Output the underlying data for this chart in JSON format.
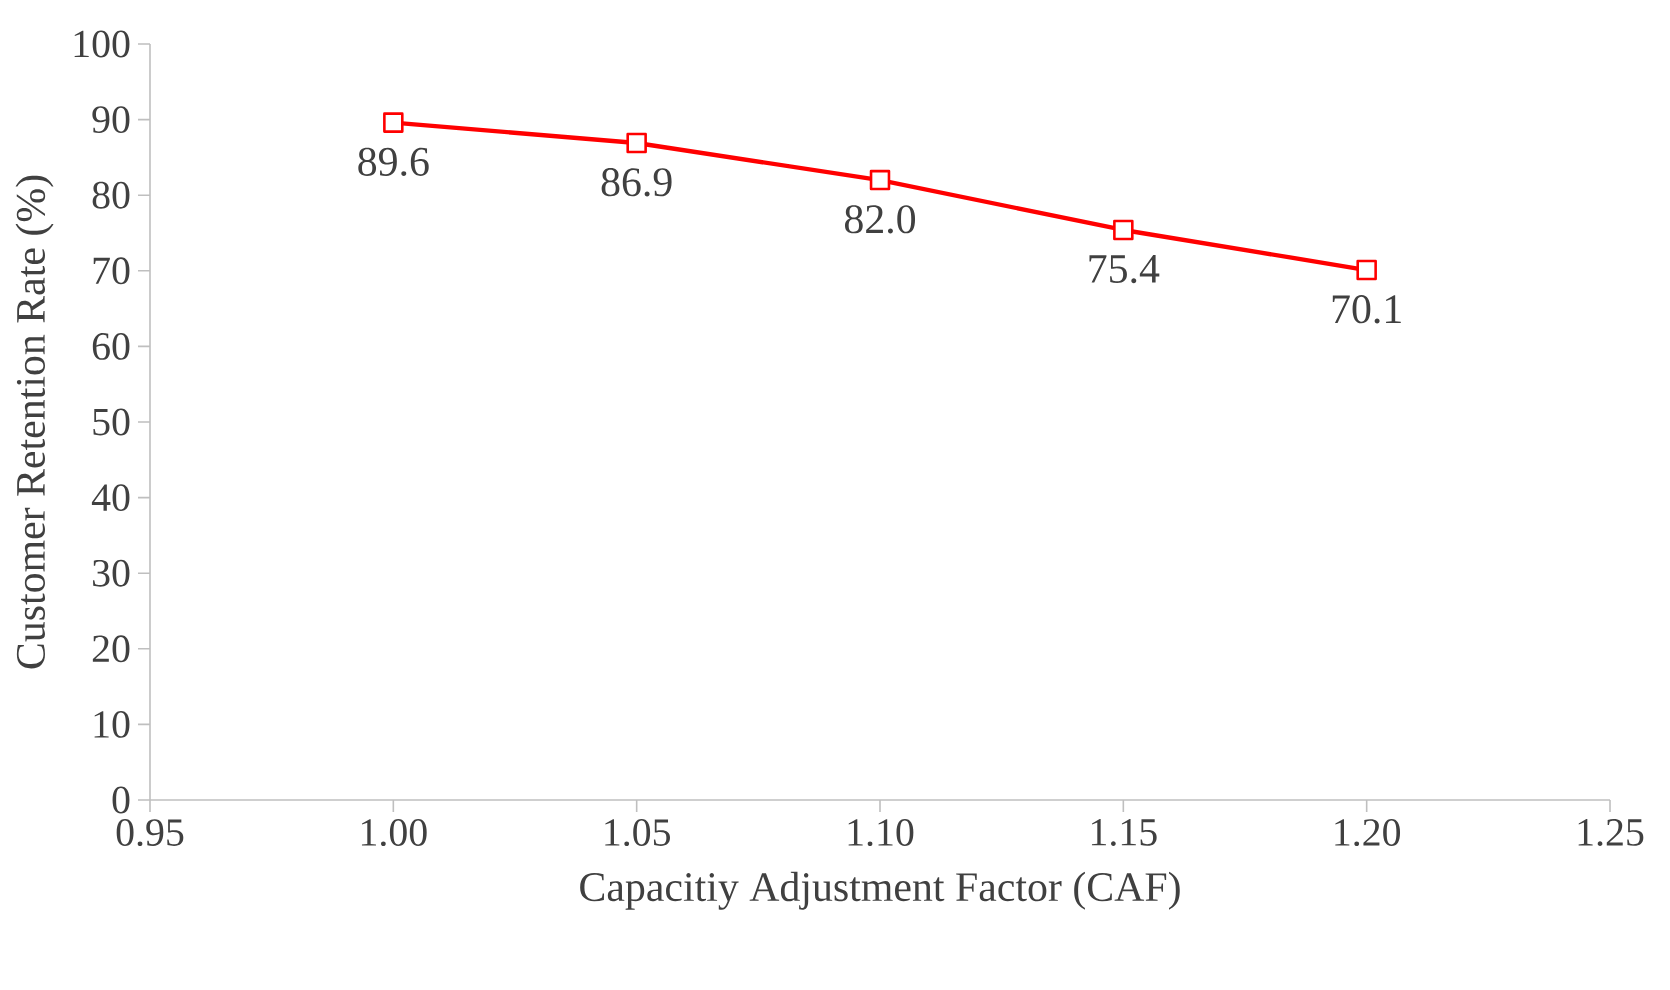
{
  "chart_data": {
    "type": "line",
    "xlabel": "Capacitiy Adjustment Factor (CAF)",
    "ylabel": "Customer Retention Rate (%)",
    "x": [
      1.0,
      1.05,
      1.1,
      1.15,
      1.2
    ],
    "series": [
      {
        "color": "#ff0000",
        "values": [
          89.6,
          86.9,
          82.0,
          75.4,
          70.1
        ],
        "value_labels": [
          "89.6",
          "86.9",
          "82.0",
          "75.4",
          "70.1"
        ]
      }
    ],
    "xlim": [
      0.95,
      1.25
    ],
    "xticks": [
      0.95,
      {
        "value": 1.0,
        "label": "1.00"
      },
      1.05,
      {
        "value": 1.1,
        "label": "1.10"
      },
      1.15,
      {
        "value": 1.2,
        "label": "1.20"
      },
      1.25
    ],
    "ylim": [
      0,
      100
    ],
    "yticks": [
      0,
      10,
      20,
      30,
      40,
      50,
      60,
      70,
      80,
      90,
      100
    ],
    "marker": "square",
    "line_style": "solid"
  }
}
